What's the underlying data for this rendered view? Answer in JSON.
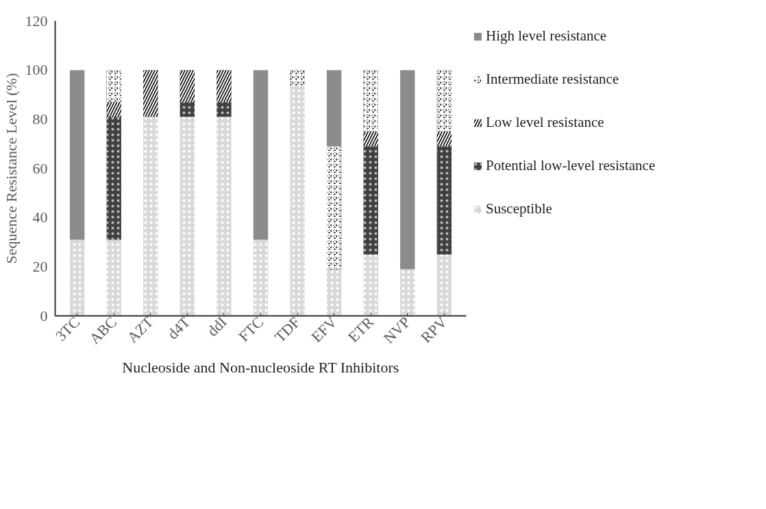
{
  "chart_data": {
    "type": "bar",
    "stacked": true,
    "xlabel": "Nucleoside and Non-nucleoside RT Inhibitors",
    "ylabel": "Sequence Resistance Level (%)",
    "categories": [
      "3TC",
      "ABC",
      "AZT",
      "d4T",
      "ddI",
      "FTC",
      "TDF",
      "EFV",
      "ETR",
      "NVP",
      "RPV"
    ],
    "ylim": [
      0,
      120
    ],
    "yticks": [
      0,
      20,
      40,
      60,
      80,
      100,
      120
    ],
    "grid": false,
    "legend": "right",
    "series": [
      {
        "name": "Susceptible",
        "color": "#d9d9d9",
        "values": [
          31,
          31,
          81,
          81,
          81,
          31,
          94,
          19,
          25,
          19,
          25
        ]
      },
      {
        "name": "Potential low-level resistance",
        "color": "#404040",
        "values": [
          0,
          50,
          0,
          6,
          6,
          0,
          0,
          0,
          44,
          0,
          44
        ]
      },
      {
        "name": "Low level resistance",
        "color": "#000000",
        "values": [
          0,
          6,
          19,
          13,
          13,
          0,
          0,
          0,
          6,
          0,
          6
        ]
      },
      {
        "name": "Intermediate resistance",
        "color": "#1a1a1a",
        "values": [
          0,
          13,
          0,
          0,
          0,
          0,
          6,
          50,
          25,
          0,
          25
        ]
      },
      {
        "name": "High level resistance",
        "color": "#8c8c8c",
        "values": [
          69,
          0,
          0,
          0,
          0,
          69,
          0,
          31,
          0,
          81,
          0
        ]
      }
    ]
  }
}
